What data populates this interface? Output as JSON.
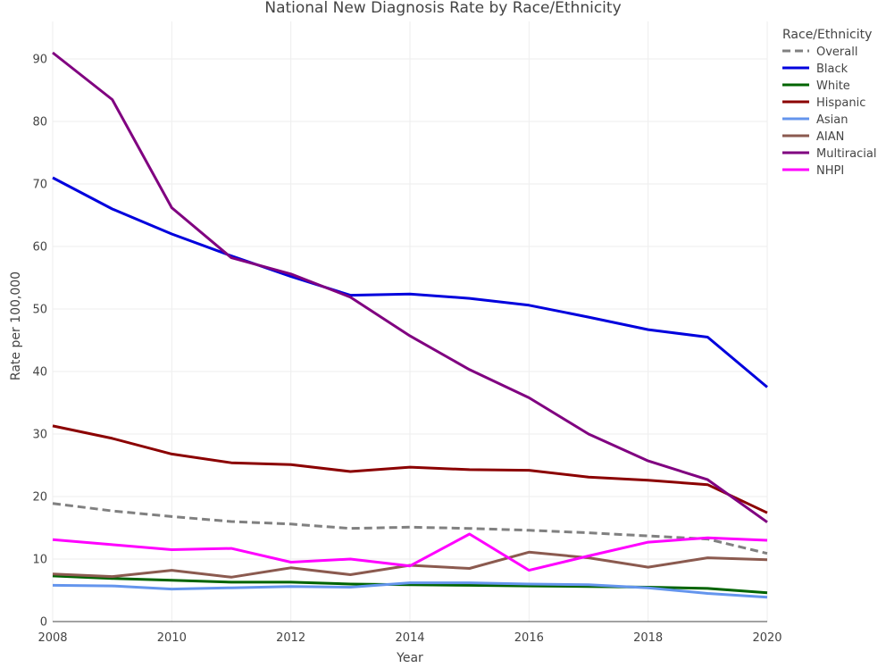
{
  "chart_data": {
    "type": "line",
    "title": "National New Diagnosis Rate by Race/Ethnicity",
    "xlabel": "Year",
    "ylabel": "Rate per 100,000",
    "xlim": [
      2008,
      2020
    ],
    "ylim": [
      0,
      96
    ],
    "x_ticks": [
      2008,
      2010,
      2012,
      2014,
      2016,
      2018,
      2020
    ],
    "y_ticks": [
      0,
      10,
      20,
      30,
      40,
      50,
      60,
      70,
      80,
      90
    ],
    "grid": true,
    "legend": {
      "title": "Race/Ethnicity",
      "position": "top-right"
    },
    "x": [
      2008,
      2009,
      2010,
      2011,
      2012,
      2013,
      2014,
      2015,
      2016,
      2017,
      2018,
      2019,
      2020
    ],
    "series": [
      {
        "name": "Overall",
        "color": "#808080",
        "dash": "dashed",
        "values": [
          18.9,
          17.7,
          16.8,
          16.0,
          15.6,
          14.9,
          15.1,
          14.9,
          14.6,
          14.2,
          13.7,
          13.2,
          10.9
        ]
      },
      {
        "name": "Black",
        "color": "#0000dd",
        "dash": "solid",
        "values": [
          71.0,
          66.0,
          62.0,
          58.5,
          55.2,
          52.2,
          52.4,
          51.7,
          50.6,
          48.7,
          46.7,
          45.5,
          37.5
        ]
      },
      {
        "name": "White",
        "color": "#006400",
        "dash": "solid",
        "values": [
          7.3,
          6.9,
          6.6,
          6.3,
          6.3,
          6.0,
          5.9,
          5.8,
          5.7,
          5.6,
          5.5,
          5.3,
          4.6
        ]
      },
      {
        "name": "Hispanic",
        "color": "#8b0000",
        "dash": "solid",
        "values": [
          31.3,
          29.3,
          26.8,
          25.4,
          25.1,
          24.0,
          24.7,
          24.3,
          24.2,
          23.1,
          22.6,
          21.9,
          17.4
        ]
      },
      {
        "name": "Asian",
        "color": "#6495ed",
        "dash": "solid",
        "values": [
          5.8,
          5.7,
          5.2,
          5.4,
          5.6,
          5.5,
          6.2,
          6.2,
          6.0,
          5.9,
          5.4,
          4.5,
          3.9
        ]
      },
      {
        "name": "AIAN",
        "color": "#8b5a4f",
        "dash": "solid",
        "values": [
          7.6,
          7.2,
          8.2,
          7.1,
          8.6,
          7.5,
          9.0,
          8.5,
          11.1,
          10.2,
          8.7,
          10.2,
          9.9
        ]
      },
      {
        "name": "Multiracial",
        "color": "#800080",
        "dash": "solid",
        "values": [
          91.0,
          83.5,
          66.2,
          58.2,
          55.6,
          51.9,
          45.7,
          40.3,
          35.8,
          30.0,
          25.7,
          22.7,
          15.9
        ]
      },
      {
        "name": "NHPI",
        "color": "#ff00ff",
        "dash": "solid",
        "values": [
          13.1,
          12.3,
          11.5,
          11.7,
          9.5,
          10.0,
          8.9,
          14.0,
          8.2,
          10.5,
          12.7,
          13.4,
          13.0
        ]
      }
    ]
  }
}
